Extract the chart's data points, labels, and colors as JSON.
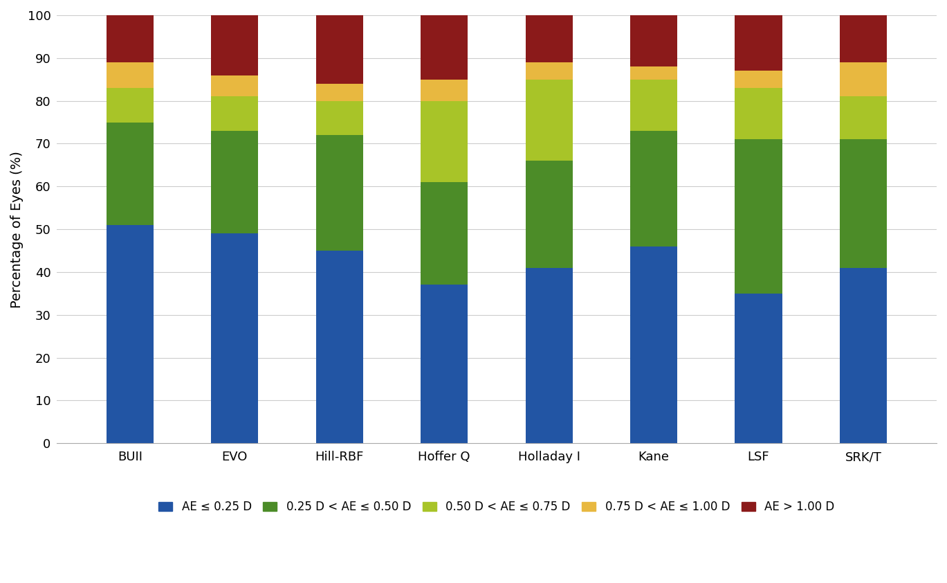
{
  "categories": [
    "BUII",
    "EVO",
    "Hill-RBF",
    "Hoffer Q",
    "Holladay I",
    "Kane",
    "LSF",
    "SRK/T"
  ],
  "series": {
    "AE ≤ 0.25 D": [
      51,
      49,
      45,
      37,
      41,
      46,
      35,
      41
    ],
    "0.25 D < AE ≤ 0.50 D": [
      24,
      24,
      27,
      24,
      25,
      27,
      36,
      30
    ],
    "0.50 D < AE ≤ 0.75 D": [
      8,
      8,
      8,
      19,
      19,
      12,
      12,
      10
    ],
    "0.75 D < AE ≤ 1.00 D": [
      6,
      5,
      4,
      5,
      4,
      3,
      4,
      8
    ],
    "AE > 1.00 D": [
      11,
      14,
      16,
      15,
      11,
      12,
      13,
      11
    ]
  },
  "colors": {
    "AE ≤ 0.25 D": "#2255A4",
    "0.25 D < AE ≤ 0.50 D": "#4C8C28",
    "0.50 D < AE ≤ 0.75 D": "#A8C428",
    "0.75 D < AE ≤ 1.00 D": "#E8B840",
    "AE > 1.00 D": "#8B1A1A"
  },
  "ylabel": "Percentage of Eyes (%)",
  "ylim": [
    0,
    100
  ],
  "yticks": [
    0,
    10,
    20,
    30,
    40,
    50,
    60,
    70,
    80,
    90,
    100
  ],
  "legend_labels": [
    "AE ≤ 0.25 D",
    "0.25 D < AE ≤ 0.50 D",
    "0.50 D < AE ≤ 0.75 D",
    "0.75 D < AE ≤ 1.00 D",
    "AE > 1.00 D"
  ],
  "bar_width": 0.45,
  "background_color": "#FFFFFF",
  "grid_color": "#CCCCCC",
  "axis_fontsize": 14,
  "legend_fontsize": 12,
  "tick_fontsize": 13
}
